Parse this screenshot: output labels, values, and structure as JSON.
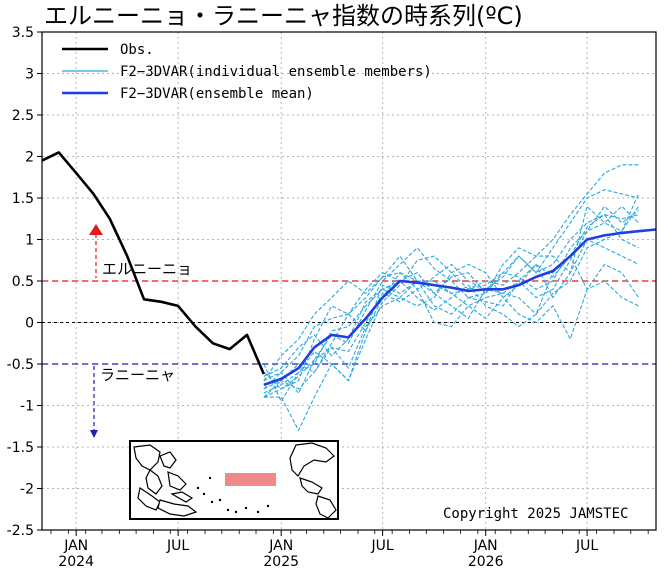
{
  "chart_data": {
    "type": "line",
    "title": "エルニーニョ・ラニーニャ指数の時系列(ºC)",
    "y_ticks": [
      "3.5",
      "3",
      "2.5",
      "2",
      "1.5",
      "1",
      "0.5",
      "0",
      "-0.5",
      "-1",
      "-1.5",
      "-2",
      "-2.5"
    ],
    "x_tick_labels": [
      {
        "month": "JAN",
        "year": "2024"
      },
      {
        "month": "JUL",
        "year": ""
      },
      {
        "month": "JAN",
        "year": "2025"
      },
      {
        "month": "JUL",
        "year": ""
      },
      {
        "month": "JAN",
        "year": "2026"
      },
      {
        "month": "JUL",
        "year": ""
      }
    ],
    "ylim": [
      -2.5,
      3.5
    ],
    "x_axis_start": "2023-11-15",
    "x_axis_end": "2026-11-15",
    "grid": true,
    "legend": [
      {
        "label": "Obs.",
        "color": "#000000",
        "style": "solid"
      },
      {
        "label": "F2−3DVAR(individual ensemble members)",
        "color": "#29a8e0",
        "style": "dashed"
      },
      {
        "label": "F2−3DVAR(ensemble mean)",
        "color": "#1f3fe0",
        "style": "solid"
      }
    ],
    "thresholds": [
      {
        "value": 0.5,
        "label": "エルニーニョ",
        "color": "#e8171b"
      },
      {
        "value": -0.5,
        "label": "ラニーニャ",
        "color": "#1f1fb8"
      }
    ],
    "series": [
      {
        "name": "Obs.",
        "color": "#000000",
        "x": [
          "2023-11",
          "2023-12",
          "2024-01",
          "2024-02",
          "2024-03",
          "2024-04",
          "2024-05",
          "2024-06",
          "2024-07",
          "2024-08",
          "2024-09",
          "2024-10",
          "2024-11",
          "2024-12"
        ],
        "values": [
          1.95,
          2.05,
          1.8,
          1.55,
          1.25,
          0.8,
          0.28,
          0.25,
          0.2,
          -0.05,
          -0.25,
          -0.32,
          -0.15,
          -0.62
        ]
      },
      {
        "name": "F2−3DVAR(ensemble mean)",
        "color": "#1f3fe0",
        "x": [
          "2024-12",
          "2025-01",
          "2025-02",
          "2025-03",
          "2025-04",
          "2025-05",
          "2025-06",
          "2025-07",
          "2025-08",
          "2025-09",
          "2025-10",
          "2025-11",
          "2025-12",
          "2026-01",
          "2026-02",
          "2026-03",
          "2026-04",
          "2026-05",
          "2026-06",
          "2026-07",
          "2026-08",
          "2026-09",
          "2026-10",
          "2026-11"
        ],
        "values": [
          -0.75,
          -0.68,
          -0.55,
          -0.3,
          -0.15,
          -0.18,
          0.05,
          0.3,
          0.5,
          0.48,
          0.45,
          0.42,
          0.38,
          0.4,
          0.4,
          0.45,
          0.55,
          0.62,
          0.8,
          1.0,
          1.05,
          1.08,
          1.1,
          1.12
        ]
      }
    ],
    "members": [
      [
        -0.8,
        -0.6,
        -0.4,
        -0.05,
        0.05,
        0.1,
        0.3,
        0.55,
        0.6,
        0.5,
        0.45,
        0.35,
        0.4,
        0.5,
        0.45,
        0.6,
        0.8,
        1.0,
        1.3,
        1.55,
        1.8,
        1.9,
        1.9
      ],
      [
        -0.7,
        -0.4,
        -0.2,
        0.1,
        0.3,
        0.5,
        0.35,
        0.55,
        0.8,
        0.5,
        0.35,
        0.55,
        0.6,
        0.35,
        0.6,
        0.8,
        0.6,
        0.9,
        1.2,
        1.5,
        1.6,
        1.55,
        1.5
      ],
      [
        -0.9,
        -0.9,
        -1.3,
        -0.9,
        -0.5,
        -0.7,
        -0.1,
        0.45,
        0.35,
        0.5,
        0.2,
        0.1,
        0.3,
        0.25,
        0.2,
        0.5,
        0.7,
        0.3,
        0.6,
        1.4,
        1.2,
        1.1,
        1.55
      ],
      [
        -0.6,
        -0.8,
        -0.7,
        -0.2,
        0.2,
        0.1,
        -0.1,
        0.3,
        0.6,
        0.4,
        0.55,
        0.7,
        0.5,
        0.4,
        0.35,
        0.3,
        0.1,
        0.35,
        0.5,
        0.9,
        1.0,
        1.1,
        1.4
      ],
      [
        -0.9,
        -0.7,
        -0.5,
        -0.6,
        -0.25,
        0.1,
        0.4,
        0.6,
        0.5,
        0.6,
        0.35,
        0.2,
        0.05,
        0.4,
        0.55,
        0.8,
        0.6,
        0.7,
        1.0,
        1.2,
        1.3,
        1.25,
        1.3
      ],
      [
        -0.5,
        -0.95,
        -0.6,
        -0.35,
        -0.5,
        -0.7,
        -0.2,
        0.25,
        0.45,
        0.75,
        0.8,
        0.6,
        0.4,
        0.45,
        0.6,
        0.55,
        0.4,
        0.5,
        0.9,
        1.1,
        1.2,
        1.4,
        1.2
      ],
      [
        -0.7,
        -0.6,
        -0.85,
        -0.45,
        -0.15,
        -0.25,
        0.15,
        0.5,
        0.7,
        0.9,
        0.65,
        0.5,
        0.3,
        0.35,
        0.7,
        0.9,
        0.8,
        0.8,
        0.6,
        1.0,
        0.9,
        0.8,
        0.7
      ],
      [
        -0.8,
        -0.7,
        -0.8,
        -0.6,
        -0.3,
        -0.35,
        0.0,
        0.35,
        0.25,
        0.4,
        0.0,
        -0.05,
        0.2,
        0.3,
        0.35,
        0.5,
        0.3,
        0.4,
        0.75,
        1.1,
        1.4,
        1.2,
        1.35
      ],
      [
        -0.85,
        -0.75,
        -0.6,
        -0.5,
        -0.1,
        -0.05,
        0.2,
        0.4,
        0.5,
        0.3,
        0.15,
        0.3,
        0.45,
        0.2,
        0.1,
        -0.05,
        0.1,
        0.6,
        0.8,
        0.4,
        0.5,
        0.3,
        0.2
      ],
      [
        -0.65,
        -0.55,
        -0.3,
        -0.15,
        -0.4,
        -0.2,
        0.25,
        0.4,
        0.3,
        0.5,
        0.5,
        0.35,
        0.2,
        0.05,
        0.3,
        0.45,
        0.7,
        0.55,
        0.8,
        1.15,
        1.3,
        1.0,
        0.9
      ],
      [
        -0.9,
        -0.8,
        -0.65,
        -0.45,
        -0.3,
        -0.55,
        -0.05,
        0.2,
        0.3,
        0.2,
        0.3,
        0.6,
        0.7,
        0.6,
        0.3,
        0.1,
        0.0,
        0.2,
        -0.2,
        0.4,
        0.7,
        0.6,
        0.3
      ]
    ],
    "members_x_start": "2024-12"
  },
  "copyright": "Copyright  2025  JAMSTEC",
  "colors": {
    "obs": "#000000",
    "members": "#29a8e0",
    "mean": "#1f3fe0",
    "elnino": "#e8171b",
    "lanina": "#1f1fb8",
    "region": "#f08a8a"
  }
}
